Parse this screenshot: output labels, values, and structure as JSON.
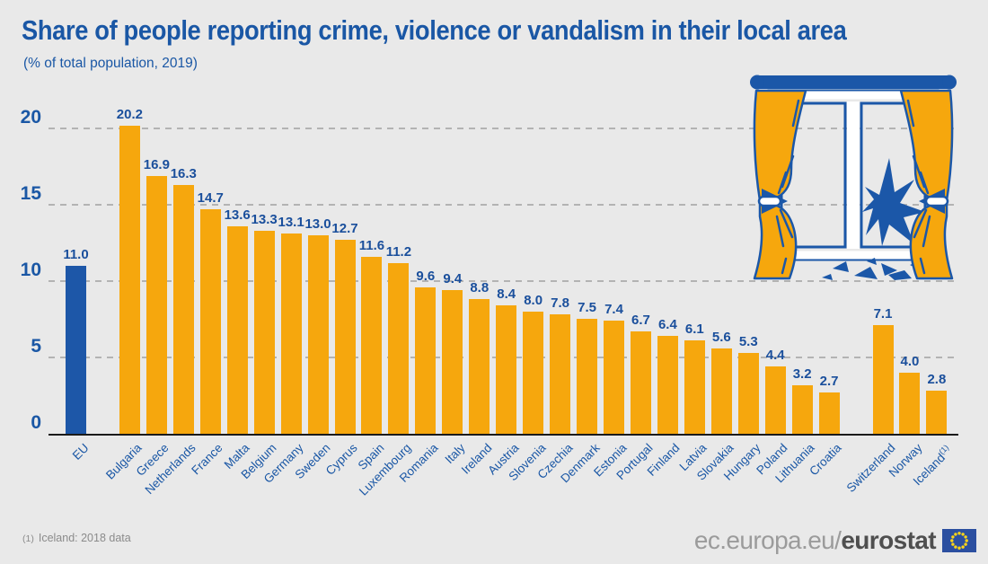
{
  "colors": {
    "background": "#e9e9e9",
    "title_blue": "#1a57a5",
    "eu_bar_blue": "#1d57a8",
    "bar_orange": "#f6a70d",
    "value_label_blue": "#1a4f9c",
    "axis_black": "#1a1a1a",
    "gridline_gray": "#b3b3b3",
    "footnote_gray": "#8b8b8b",
    "logo_gray": "#9b9b9b",
    "logo_dark": "#4f4f4f",
    "flag_blue": "#2b4fa0",
    "flag_star_yellow": "#ffd617"
  },
  "chart_data": {
    "type": "bar",
    "title": "Share of people reporting crime, violence or vandalism in their local area",
    "subtitle": "(% of total population, 2019)",
    "xlabel": "",
    "ylabel": "",
    "ylim": [
      0,
      20
    ],
    "yticks": [
      0,
      5,
      10,
      15,
      20
    ],
    "grid": "horizontal-dashed",
    "legend": "none",
    "bars": [
      {
        "label": "EU",
        "value": 11.0,
        "display": "11.0",
        "slot": 0,
        "group": "eu"
      },
      {
        "label": "Bulgaria",
        "value": 20.2,
        "display": "20.2",
        "slot": 2,
        "group": "member"
      },
      {
        "label": "Greece",
        "value": 16.9,
        "display": "16.9",
        "slot": 3,
        "group": "member"
      },
      {
        "label": "Netherlands",
        "value": 16.3,
        "display": "16.3",
        "slot": 4,
        "group": "member"
      },
      {
        "label": "France",
        "value": 14.7,
        "display": "14.7",
        "slot": 5,
        "group": "member"
      },
      {
        "label": "Malta",
        "value": 13.6,
        "display": "13.6",
        "slot": 6,
        "group": "member"
      },
      {
        "label": "Belgium",
        "value": 13.3,
        "display": "13.3",
        "slot": 7,
        "group": "member"
      },
      {
        "label": "Germany",
        "value": 13.1,
        "display": "13.1",
        "slot": 8,
        "group": "member"
      },
      {
        "label": "Sweden",
        "value": 13.0,
        "display": "13.0",
        "slot": 9,
        "group": "member"
      },
      {
        "label": "Cyprus",
        "value": 12.7,
        "display": "12.7",
        "slot": 10,
        "group": "member"
      },
      {
        "label": "Spain",
        "value": 11.6,
        "display": "11.6",
        "slot": 11,
        "group": "member"
      },
      {
        "label": "Luxembourg",
        "value": 11.2,
        "display": "11.2",
        "slot": 12,
        "group": "member"
      },
      {
        "label": "Romania",
        "value": 9.6,
        "display": "9.6",
        "slot": 13,
        "group": "member"
      },
      {
        "label": "Italy",
        "value": 9.4,
        "display": "9.4",
        "slot": 14,
        "group": "member"
      },
      {
        "label": "Ireland",
        "value": 8.8,
        "display": "8.8",
        "slot": 15,
        "group": "member"
      },
      {
        "label": "Austria",
        "value": 8.4,
        "display": "8.4",
        "slot": 16,
        "group": "member"
      },
      {
        "label": "Slovenia",
        "value": 8.0,
        "display": "8.0",
        "slot": 17,
        "group": "member"
      },
      {
        "label": "Czechia",
        "value": 7.8,
        "display": "7.8",
        "slot": 18,
        "group": "member"
      },
      {
        "label": "Denmark",
        "value": 7.5,
        "display": "7.5",
        "slot": 19,
        "group": "member"
      },
      {
        "label": "Estonia",
        "value": 7.4,
        "display": "7.4",
        "slot": 20,
        "group": "member"
      },
      {
        "label": "Portugal",
        "value": 6.7,
        "display": "6.7",
        "slot": 21,
        "group": "member"
      },
      {
        "label": "Finland",
        "value": 6.4,
        "display": "6.4",
        "slot": 22,
        "group": "member"
      },
      {
        "label": "Latvia",
        "value": 6.1,
        "display": "6.1",
        "slot": 23,
        "group": "member"
      },
      {
        "label": "Slovakia",
        "value": 5.6,
        "display": "5.6",
        "slot": 24,
        "group": "member"
      },
      {
        "label": "Hungary",
        "value": 5.3,
        "display": "5.3",
        "slot": 25,
        "group": "member"
      },
      {
        "label": "Poland",
        "value": 4.4,
        "display": "4.4",
        "slot": 26,
        "group": "member"
      },
      {
        "label": "Lithuania",
        "value": 3.2,
        "display": "3.2",
        "slot": 27,
        "group": "member"
      },
      {
        "label": "Croatia",
        "value": 2.7,
        "display": "2.7",
        "slot": 28,
        "group": "member"
      },
      {
        "label": "Switzerland",
        "value": 7.1,
        "display": "7.1",
        "slot": 30,
        "group": "efta"
      },
      {
        "label": "Norway",
        "value": 4.0,
        "display": "4.0",
        "slot": 31,
        "group": "efta"
      },
      {
        "label": "Iceland",
        "value": 2.8,
        "display": "2.8",
        "slot": 32,
        "group": "efta",
        "sup": "(1)"
      }
    ]
  },
  "footnote": {
    "marker": "(1)",
    "text": "Iceland: 2018 data"
  },
  "logo": {
    "prefix": "ec.europa.eu/",
    "bold": "eurostat"
  },
  "illustration": {
    "name": "broken-window-with-curtains"
  }
}
